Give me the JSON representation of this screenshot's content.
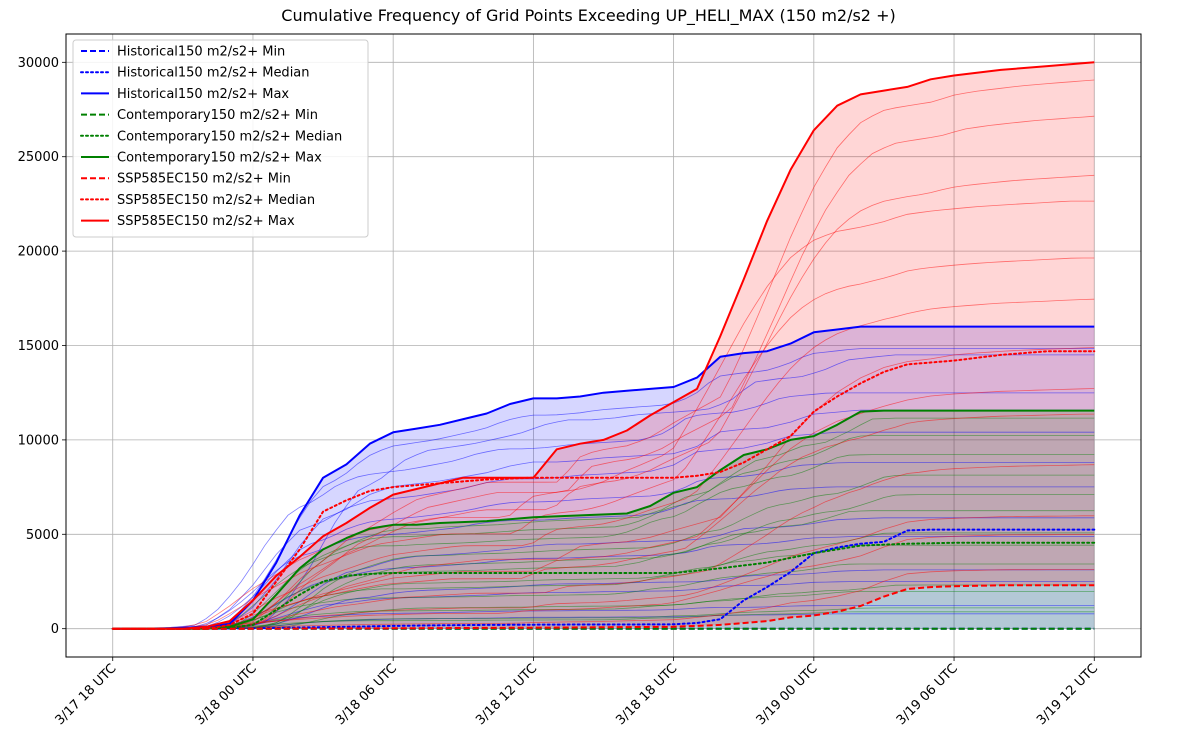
{
  "chart_data": {
    "type": "line",
    "title": "Cumulative Frequency of Grid Points Exceeding UP_HELI_MAX (150 m2/s2 +)",
    "xlabel": "",
    "ylabel": "",
    "x_unit": "hours since 3/17 18 UTC",
    "xlim": [
      -2,
      44
    ],
    "ylim": [
      -1500,
      31500
    ],
    "grid": true,
    "legend_position": "upper-left",
    "x_ticks": [
      {
        "x": 0,
        "label": "3/17 18 UTC"
      },
      {
        "x": 6,
        "label": "3/18 00 UTC"
      },
      {
        "x": 12,
        "label": "3/18 06 UTC"
      },
      {
        "x": 18,
        "label": "3/18 12 UTC"
      },
      {
        "x": 24,
        "label": "3/18 18 UTC"
      },
      {
        "x": 30,
        "label": "3/19 00 UTC"
      },
      {
        "x": 36,
        "label": "3/19 06 UTC"
      },
      {
        "x": 42,
        "label": "3/19 12 UTC"
      }
    ],
    "y_ticks": [
      0,
      5000,
      10000,
      15000,
      20000,
      25000,
      30000
    ],
    "colors": {
      "Historical": "#0000ff",
      "Contemporary": "#008000",
      "SSP585EC": "#ff0000"
    },
    "series": [
      {
        "name": "Historical150 m2/s2+ Min",
        "group": "Historical",
        "style": "dashed",
        "x": [
          0,
          24,
          26,
          28,
          30,
          32,
          34,
          36,
          38,
          40,
          42
        ],
        "y": [
          0,
          0,
          0,
          0,
          0,
          0,
          0,
          0,
          0,
          0,
          0
        ]
      },
      {
        "name": "Historical150 m2/s2+ Median",
        "group": "Historical",
        "style": "dotted",
        "x": [
          0,
          4,
          6,
          8,
          10,
          12,
          14,
          16,
          18,
          20,
          22,
          24,
          25,
          26,
          27,
          28,
          29,
          30,
          31,
          32,
          33,
          34,
          35,
          36,
          38,
          40,
          42
        ],
        "y": [
          0,
          0,
          20,
          60,
          100,
          150,
          180,
          200,
          210,
          220,
          220,
          230,
          300,
          500,
          1500,
          2200,
          3000,
          4000,
          4300,
          4500,
          4600,
          5200,
          5250,
          5250,
          5250,
          5250,
          5250
        ]
      },
      {
        "name": "Historical150 m2/s2+ Max",
        "group": "Historical",
        "style": "solid",
        "x": [
          0,
          2,
          4,
          5,
          6,
          7,
          8,
          9,
          10,
          11,
          12,
          13,
          14,
          15,
          16,
          17,
          18,
          19,
          20,
          21,
          22,
          23,
          24,
          25,
          26,
          27,
          28,
          29,
          30,
          31,
          32,
          34,
          36,
          38,
          40,
          42
        ],
        "y": [
          0,
          0,
          100,
          250,
          1500,
          3500,
          6000,
          8000,
          8700,
          9800,
          10400,
          10600,
          10800,
          11100,
          11400,
          11900,
          12200,
          12200,
          12300,
          12500,
          12600,
          12700,
          12800,
          13300,
          14400,
          14600,
          14700,
          15100,
          15700,
          15850,
          16000,
          16000,
          16000,
          16000,
          16000,
          16000
        ]
      },
      {
        "name": "Contemporary150 m2/s2+ Min",
        "group": "Contemporary",
        "style": "dashed",
        "x": [
          0,
          24,
          26,
          28,
          30,
          32,
          34,
          36,
          38,
          40,
          42
        ],
        "y": [
          0,
          0,
          0,
          0,
          0,
          0,
          0,
          0,
          0,
          0,
          0
        ]
      },
      {
        "name": "Contemporary150 m2/s2+ Median",
        "group": "Contemporary",
        "style": "dotted",
        "x": [
          0,
          4,
          5,
          6,
          7,
          8,
          9,
          10,
          11,
          12,
          14,
          16,
          18,
          20,
          22,
          24,
          26,
          28,
          30,
          32,
          34,
          36,
          38,
          40,
          42
        ],
        "y": [
          0,
          0,
          50,
          200,
          1000,
          1800,
          2500,
          2800,
          2900,
          2950,
          2950,
          2950,
          2950,
          2950,
          2950,
          2950,
          3200,
          3500,
          4000,
          4400,
          4500,
          4550,
          4550,
          4550,
          4550
        ]
      },
      {
        "name": "Contemporary150 m2/s2+ Max",
        "group": "Contemporary",
        "style": "solid",
        "x": [
          0,
          4,
          5,
          6,
          7,
          8,
          9,
          10,
          11,
          12,
          13,
          14,
          16,
          18,
          20,
          22,
          23,
          24,
          25,
          26,
          27,
          28,
          29,
          30,
          31,
          32,
          33,
          34,
          36,
          38,
          40,
          42
        ],
        "y": [
          0,
          0,
          100,
          500,
          1800,
          3200,
          4200,
          4800,
          5300,
          5500,
          5500,
          5600,
          5700,
          5900,
          6000,
          6100,
          6500,
          7200,
          7500,
          8400,
          9200,
          9500,
          10000,
          10200,
          10800,
          11500,
          11550,
          11550,
          11550,
          11550,
          11550,
          11550
        ]
      },
      {
        "name": "SSP585EC150 m2/s2+ Min",
        "group": "SSP585EC",
        "style": "dashed",
        "x": [
          0,
          6,
          12,
          18,
          24,
          26,
          28,
          29,
          30,
          31,
          32,
          33,
          34,
          35,
          36,
          38,
          40,
          42
        ],
        "y": [
          0,
          0,
          20,
          50,
          100,
          200,
          400,
          600,
          700,
          900,
          1200,
          1700,
          2100,
          2200,
          2250,
          2300,
          2300,
          2300
        ]
      },
      {
        "name": "SSP585EC150 m2/s2+ Median",
        "group": "SSP585EC",
        "style": "dotted",
        "x": [
          0,
          4,
          5,
          6,
          7,
          8,
          9,
          10,
          11,
          12,
          14,
          16,
          18,
          20,
          22,
          24,
          25,
          26,
          27,
          28,
          29,
          30,
          31,
          32,
          33,
          34,
          35,
          36,
          38,
          40,
          42
        ],
        "y": [
          0,
          0,
          200,
          800,
          2500,
          4200,
          6200,
          6800,
          7300,
          7500,
          7700,
          7900,
          8000,
          8000,
          8000,
          8000,
          8100,
          8300,
          8800,
          9500,
          10200,
          11500,
          12300,
          13000,
          13600,
          14000,
          14100,
          14200,
          14500,
          14700,
          14700
        ]
      },
      {
        "name": "SSP585EC150 m2/s2+ Max",
        "group": "SSP585EC",
        "style": "solid",
        "x": [
          0,
          3,
          4,
          5,
          6,
          7,
          8,
          9,
          10,
          11,
          12,
          13,
          14,
          15,
          16,
          17,
          18,
          19,
          20,
          21,
          22,
          23,
          24,
          25,
          26,
          27,
          28,
          29,
          30,
          31,
          32,
          33,
          34,
          35,
          36,
          38,
          40,
          42
        ],
        "y": [
          0,
          0,
          100,
          400,
          1500,
          2800,
          3800,
          4900,
          5600,
          6400,
          7100,
          7400,
          7700,
          8000,
          8000,
          8000,
          8000,
          9500,
          9800,
          10000,
          10500,
          11300,
          12000,
          12700,
          15500,
          18500,
          21600,
          24300,
          26400,
          27700,
          28300,
          28500,
          28700,
          29100,
          29300,
          29600,
          29800,
          30000
        ]
      }
    ]
  }
}
